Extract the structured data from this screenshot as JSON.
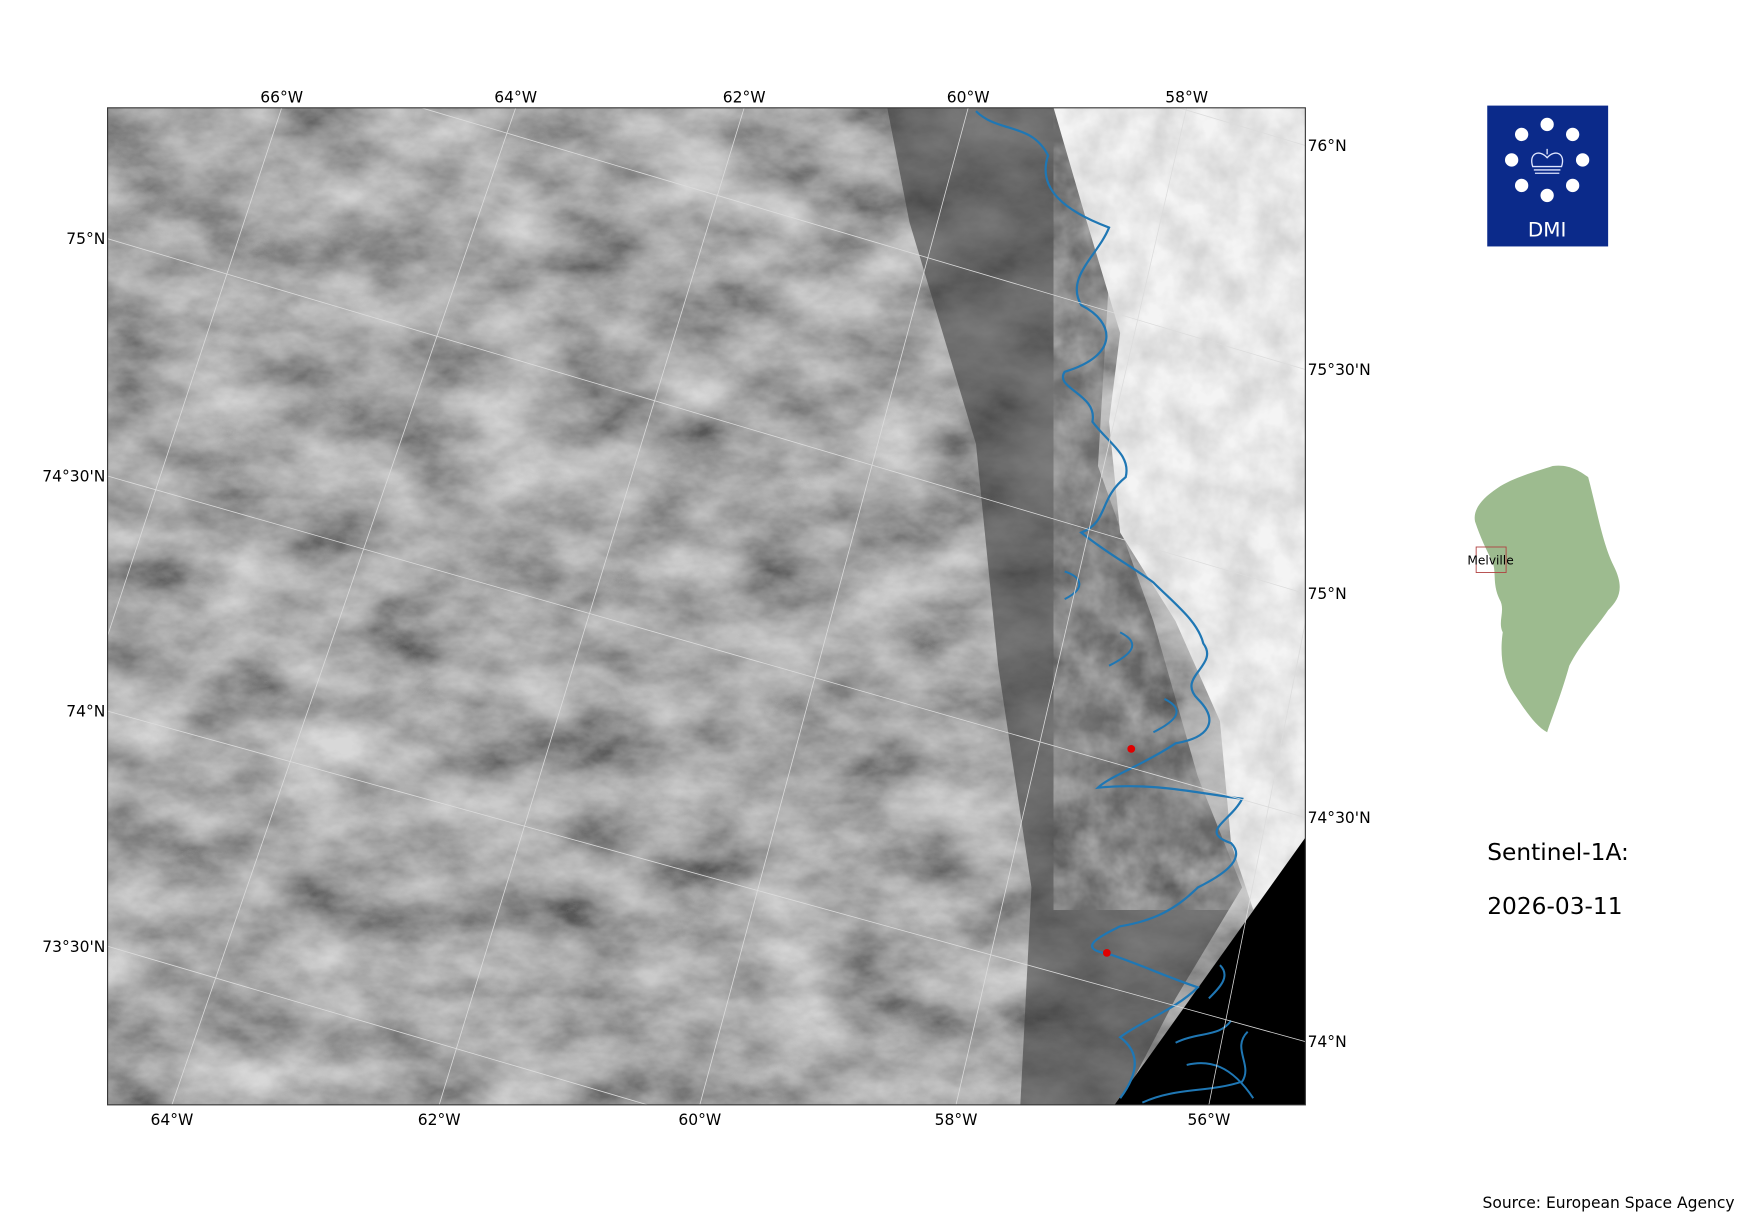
{
  "map": {
    "top_lon_labels": [
      "66°W",
      "64°W",
      "62°W",
      "60°W",
      "58°W"
    ],
    "bottom_lon_labels": [
      "64°W",
      "62°W",
      "60°W",
      "58°W",
      "56°W"
    ],
    "left_lat_labels": [
      "75°N",
      "74°30'N",
      "74°N",
      "73°30'N"
    ],
    "right_lat_labels": [
      "76°N",
      "75°30'N",
      "75°N",
      "74°30'N",
      "74°N"
    ],
    "coastline_color": "#1f77b4",
    "marker_color": "#e00000",
    "no_data_color": "#000000"
  },
  "logo": {
    "text": "DMI",
    "background": "#0b2a8a"
  },
  "inset": {
    "region_label": "Melville",
    "land_color": "#9dbb8f",
    "box_color": "#b04040"
  },
  "caption": {
    "satellite": "Sentinel-1A:",
    "date": "2026-03-11"
  },
  "source": "Source: European Space Agency"
}
